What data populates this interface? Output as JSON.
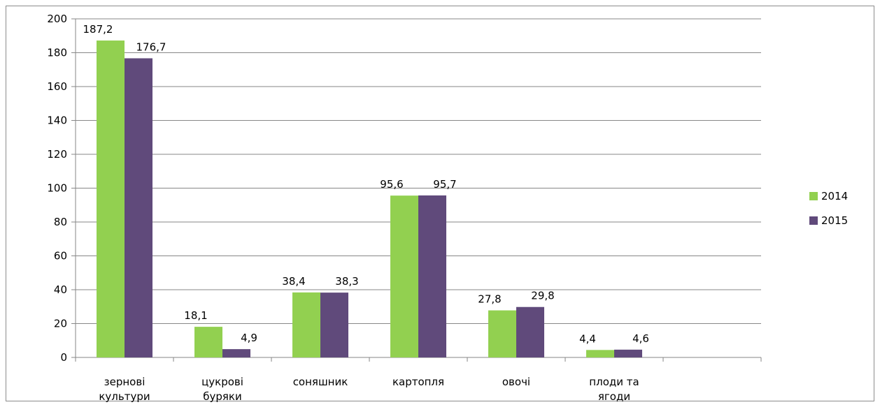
{
  "chart_data": {
    "type": "bar",
    "categories": [
      [
        "зернові",
        "культури"
      ],
      [
        "цукрові",
        "буряки"
      ],
      [
        "соняшник"
      ],
      [
        "картопля"
      ],
      [
        "овочі"
      ],
      [
        "плоди та",
        "ягоди"
      ]
    ],
    "series": [
      {
        "name": "2014",
        "color": "#92D050",
        "values": [
          187.2,
          18.1,
          38.4,
          95.6,
          27.8,
          4.4
        ],
        "labels": [
          "187,2",
          "18,1",
          "38,4",
          "95,6",
          "27,8",
          "4,4"
        ]
      },
      {
        "name": "2015",
        "color": "#604A7B",
        "values": [
          176.7,
          4.9,
          38.3,
          95.7,
          29.8,
          4.6
        ],
        "labels": [
          "176,7",
          "4,9",
          "38,3",
          "95,7",
          "29,8",
          "4,6"
        ]
      }
    ],
    "ylim": [
      0,
      200
    ],
    "yticks": [
      0,
      20,
      40,
      60,
      80,
      100,
      120,
      140,
      160,
      180,
      200
    ],
    "grid": true,
    "legend": "right",
    "title": "",
    "xlabel": "",
    "ylabel": ""
  }
}
